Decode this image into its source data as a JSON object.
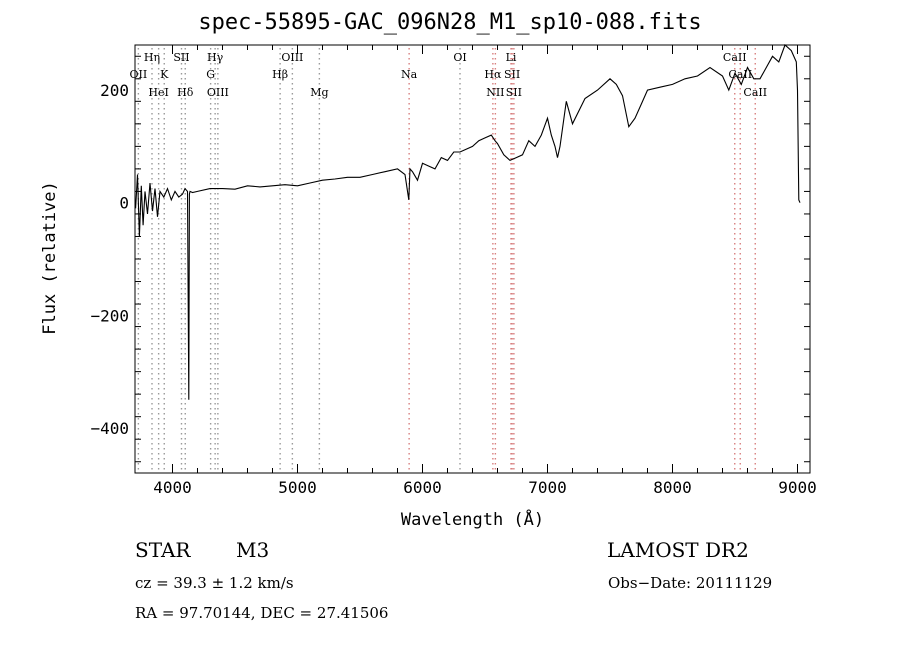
{
  "title": "spec-55895-GAC_096N28_M1_sp10-088.fits",
  "chart_data": {
    "type": "line",
    "xlabel": "Wavelength (Å)",
    "ylabel": "Flux (relative)",
    "xlim": [
      3700,
      9100
    ],
    "ylim": [
      -480,
      280
    ],
    "x_ticks": [
      4000,
      5000,
      6000,
      7000,
      8000,
      9000
    ],
    "x_tick_labels": [
      "4000",
      "5000",
      "6000",
      "7000",
      "8000",
      "9000"
    ],
    "y_ticks": [
      -400,
      -200,
      0,
      200
    ],
    "y_tick_labels": [
      "−400",
      "−200",
      "0",
      "200"
    ],
    "grid": false,
    "series": [
      {
        "x": [
          3705,
          3720,
          3735,
          3750,
          3765,
          3780,
          3800,
          3820,
          3840,
          3860,
          3880,
          3900,
          3930,
          3960,
          3990,
          4020,
          4050,
          4080,
          4100,
          4120,
          4130,
          4135,
          4140,
          4160,
          4200,
          4300,
          4400,
          4500,
          4600,
          4700,
          4800,
          4900,
          5000,
          5100,
          5200,
          5300,
          5400,
          5500,
          5600,
          5700,
          5800,
          5860,
          5890,
          5900,
          5920,
          5960,
          6000,
          6050,
          6100,
          6150,
          6200,
          6250,
          6300,
          6400,
          6450,
          6500,
          6550,
          6580,
          6600,
          6650,
          6700,
          6750,
          6800,
          6850,
          6900,
          6950,
          7000,
          7030,
          7060,
          7080,
          7100,
          7150,
          7200,
          7300,
          7400,
          7500,
          7550,
          7600,
          7650,
          7700,
          7750,
          7800,
          7900,
          8000,
          8100,
          8200,
          8300,
          8400,
          8450,
          8500,
          8550,
          8600,
          8650,
          8700,
          8750,
          8800,
          8850,
          8900,
          8950,
          8990,
          9000,
          9010,
          9020
        ],
        "y": [
          -10,
          50,
          -60,
          30,
          -40,
          20,
          -20,
          35,
          -15,
          25,
          -25,
          20,
          10,
          25,
          5,
          20,
          10,
          15,
          25,
          20,
          -350,
          15,
          20,
          18,
          20,
          25,
          25,
          24,
          30,
          28,
          30,
          32,
          30,
          35,
          40,
          42,
          45,
          45,
          50,
          55,
          60,
          50,
          5,
          60,
          55,
          40,
          70,
          65,
          60,
          80,
          75,
          90,
          90,
          100,
          110,
          115,
          120,
          110,
          105,
          85,
          75,
          80,
          85,
          110,
          100,
          120,
          150,
          120,
          100,
          80,
          100,
          180,
          140,
          185,
          200,
          220,
          210,
          190,
          135,
          150,
          175,
          200,
          205,
          210,
          220,
          225,
          240,
          225,
          200,
          230,
          210,
          240,
          220,
          220,
          240,
          260,
          250,
          280,
          270,
          250,
          200,
          5,
          0
        ]
      }
    ],
    "line_markers": [
      {
        "label": "OII",
        "x": 3727,
        "color": "#9a9a9a",
        "row": 2
      },
      {
        "label": "Hη",
        "x": 3836,
        "color": "#9a9a9a",
        "row": 0
      },
      {
        "label": "HeI",
        "x": 3889,
        "color": "#9a9a9a",
        "row": 3
      },
      {
        "label": "K",
        "x": 3934,
        "color": "#9a9a9a",
        "row": 2
      },
      {
        "label": "SII",
        "x": 4072,
        "color": "#9a9a9a",
        "row": 0
      },
      {
        "label": "Hδ",
        "x": 4102,
        "color": "#9a9a9a",
        "row": 3
      },
      {
        "label": "Hγ",
        "x": 4341,
        "color": "#9a9a9a",
        "row": 0
      },
      {
        "label": "G",
        "x": 4305,
        "color": "#9a9a9a",
        "row": 2
      },
      {
        "label": "OIII",
        "x": 4363,
        "color": "#9a9a9a",
        "row": 3
      },
      {
        "label": "OIII",
        "x": 4959,
        "color": "#9a9a9a",
        "row": 0
      },
      {
        "label": "Hβ",
        "x": 4861,
        "color": "#9a9a9a",
        "row": 2
      },
      {
        "label": "Mg",
        "x": 5175,
        "color": "#9a9a9a",
        "row": 3
      },
      {
        "label": "Na",
        "x": 5893,
        "color": "#d88080",
        "row": 2
      },
      {
        "label": "OI",
        "x": 6300,
        "color": "#9a9a9a",
        "row": 0
      },
      {
        "label": "Li",
        "x": 6708,
        "color": "#d88080",
        "row": 0
      },
      {
        "label": "Hα",
        "x": 6563,
        "color": "#d88080",
        "row": 2
      },
      {
        "label": "SII",
        "x": 6717,
        "color": "#d88080",
        "row": 2
      },
      {
        "label": "NII",
        "x": 6583,
        "color": "#d88080",
        "row": 3
      },
      {
        "label": "SII",
        "x": 6731,
        "color": "#d88080",
        "row": 3
      },
      {
        "label": "CaII",
        "x": 8498,
        "color": "#d88080",
        "row": 0
      },
      {
        "label": "CaII",
        "x": 8542,
        "color": "#d88080",
        "row": 2
      },
      {
        "label": "CaII",
        "x": 8662,
        "color": "#d88080",
        "row": 3
      }
    ]
  },
  "info": {
    "object_type": "STAR",
    "subclass": "M3",
    "survey": "LAMOST DR2",
    "cz": "cz = 39.3 ± 1.2 km/s",
    "obs_date": "Obs−Date: 20111129",
    "radec": "RA =  97.70144, DEC =  27.41506"
  }
}
